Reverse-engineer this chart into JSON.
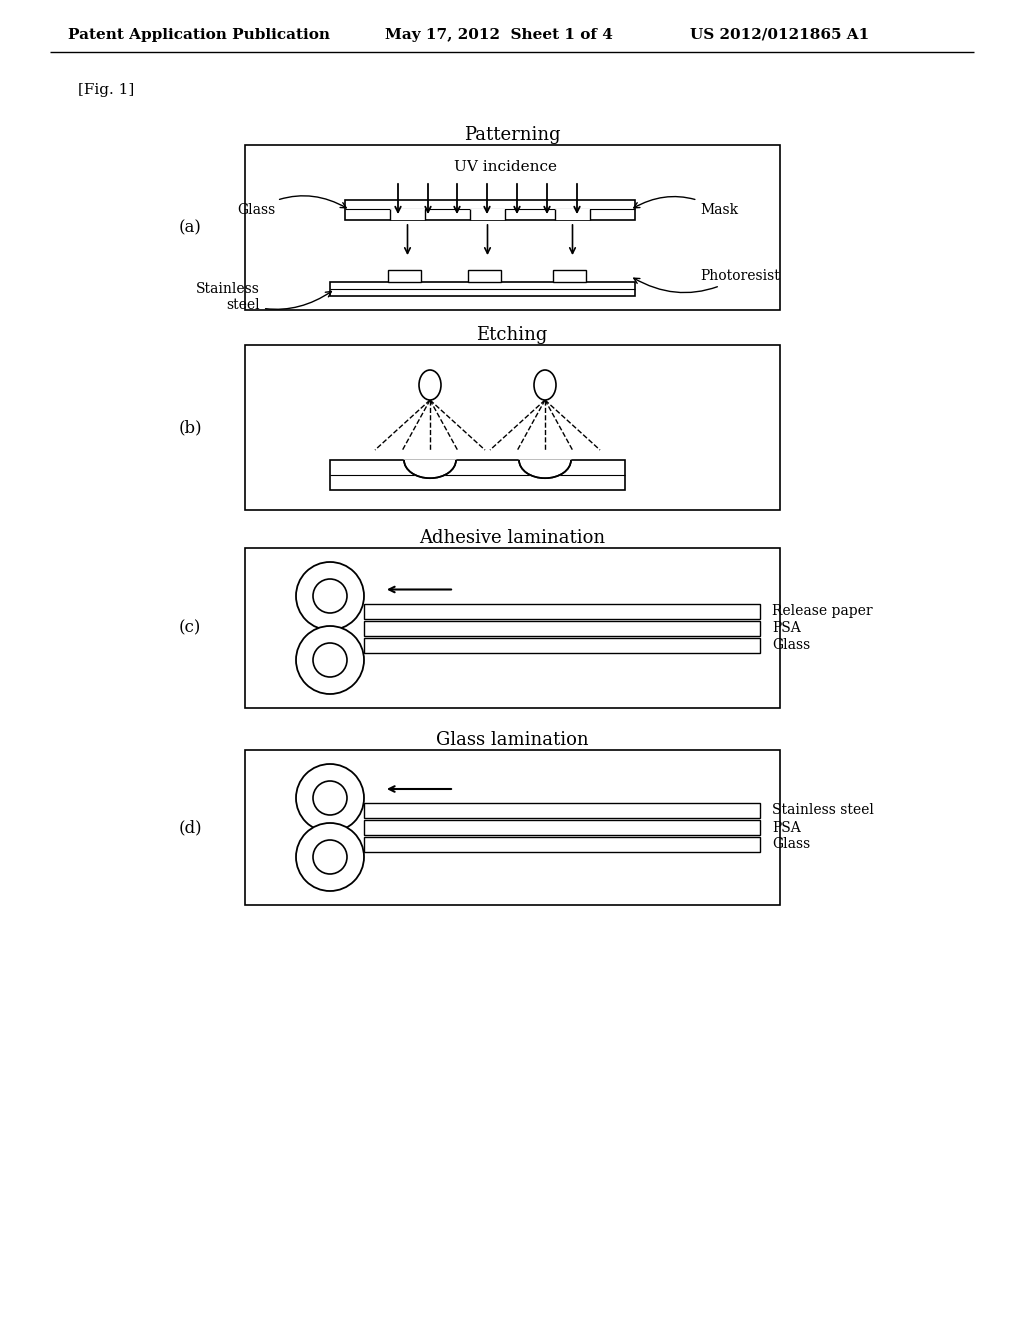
{
  "bg_color": "#ffffff",
  "header_left": "Patent Application Publication",
  "header_mid": "May 17, 2012  Sheet 1 of 4",
  "header_right": "US 2012/0121865 A1",
  "fig_label": "[Fig. 1]",
  "panel_a_label": "(a)",
  "panel_b_label": "(b)",
  "panel_c_label": "(c)",
  "panel_d_label": "(d)",
  "title_a": "Patterning",
  "title_b": "Etching",
  "title_c": "Adhesive lamination",
  "title_d": "Glass lamination",
  "label_glass": "Glass",
  "label_stainless": "Stainless\nsteel",
  "label_mask": "Mask",
  "label_photoresist": "Photoresist",
  "label_uv": "UV incidence",
  "label_release_paper": "Release paper",
  "label_psa_c": "PSA",
  "label_glass_c": "Glass",
  "label_stainless_d": "Stainless steel",
  "label_psa_d": "PSA",
  "label_glass_d": "Glass"
}
